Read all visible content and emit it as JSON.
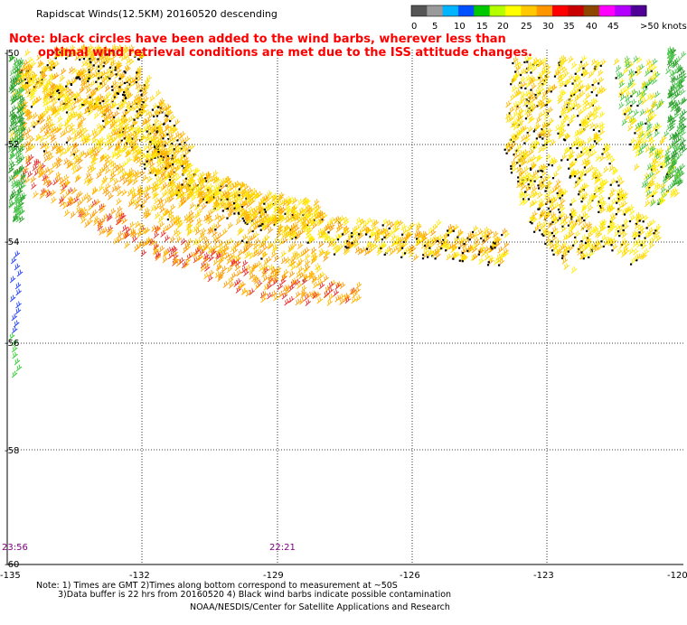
{
  "header": {
    "title": "Rapidscat Winds(12.5KM) 20160520 descending",
    "note_line1": "Note: black circles have been added to the wind barbs, wherever less than",
    "note_line2": "optimal wind retrieval conditions are met due to the ISS attitude changes."
  },
  "legend": {
    "ticks": [
      "0",
      "5",
      "10",
      "15",
      "20",
      "25",
      "30",
      "35",
      "40",
      "45",
      ">50 knots"
    ],
    "colors": [
      "#555555",
      "#9a9a9a",
      "#00b4ff",
      "#0050ff",
      "#00c800",
      "#b4ff00",
      "#ffff00",
      "#ffc800",
      "#ff9600",
      "#ff0000",
      "#c80000",
      "#8c4600",
      "#ff00ff",
      "#b400ff",
      "#500096"
    ]
  },
  "map": {
    "lat_labels": [
      "-50",
      "-52",
      "-54",
      "-56",
      "-58",
      "-60"
    ],
    "lon_labels": [
      "-135",
      "-132",
      "-129",
      "-126",
      "-123",
      "-120"
    ],
    "time_labels": [
      "23:56",
      "22:21"
    ],
    "time_color": "#800080",
    "gridline_color": "#000000"
  },
  "footer": {
    "note1": "Note: 1) Times are GMT 2)Times along bottom correspond to measurement at ~50S",
    "note2": "3)Data buffer is 22 hrs from 20160520 4) Black wind barbs indicate possible contamination",
    "credit": "NOAA/NESDIS/Center for Satellite Applications and Research"
  }
}
